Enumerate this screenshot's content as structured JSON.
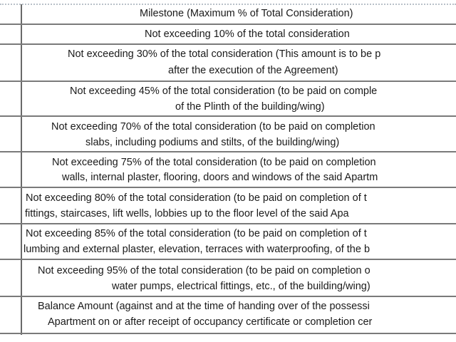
{
  "table": {
    "header": "Milestone (Maximum % of Total Consideration)",
    "rows": [
      {
        "lines": [
          "Not exceeding 10% of the total consideration"
        ]
      },
      {
        "lines": [
          "Not exceeding 30% of the total consideration (This amount is to be p",
          "after the execution of the Agreement)"
        ]
      },
      {
        "lines": [
          "Not exceeding 45% of the total consideration (to be paid on comple",
          "of the Plinth of the building/wing)"
        ]
      },
      {
        "lines": [
          "Not exceeding 70% of the total consideration (to be paid on completion",
          "slabs, including podiums and stilts, of the building/wing)"
        ]
      },
      {
        "lines": [
          "Not exceeding 75% of the total consideration (to be paid on completion",
          "walls, internal plaster, flooring, doors and windows of the said Apartm"
        ]
      },
      {
        "lines": [
          "Not exceeding 80% of the total consideration (to be paid on completion of t",
          "fittings, staircases, lift wells, lobbies up to the floor level of the said Apa"
        ]
      },
      {
        "lines": [
          "Not exceeding 85% of the total consideration (to be paid on completion of t",
          "lumbing and external plaster, elevation, terraces with waterproofing, of the b"
        ]
      },
      {
        "lines": [
          "Not exceeding 95% of the total consideration (to be paid on completion o",
          "water pumps, electrical fittings, etc., of the building/wing)"
        ]
      },
      {
        "lines": [
          "Balance Amount (against and at the time of handing over of the possessi",
          "Apartment on or after receipt of occupancy certificate or completion cer"
        ]
      }
    ]
  }
}
